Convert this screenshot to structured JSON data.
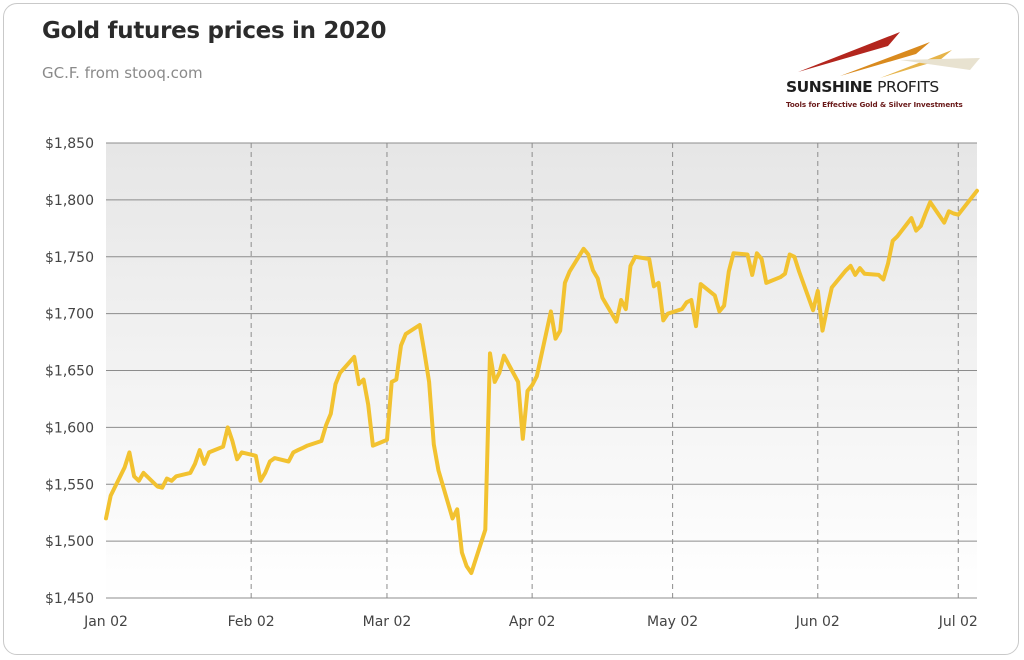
{
  "header": {
    "title": "Gold futures prices in 2020",
    "subtitle": "GC.F. from stooq.com"
  },
  "logo": {
    "brand_bold": "SUNSHINE",
    "brand_light": "PROFITS",
    "tagline": "Tools for Effective Gold & Silver Investments"
  },
  "colors": {
    "line": "#f2c230",
    "grid": "#8c8c8c",
    "plot_bg_top": "#e6e6e6",
    "plot_bg_bottom": "#ffffff"
  },
  "chart_data": {
    "type": "line",
    "title": "Gold futures prices in 2020",
    "subtitle": "GC.F. from stooq.com",
    "xlabel": "",
    "ylabel": "",
    "x_tick_labels": [
      "Jan 02",
      "Feb 02",
      "Mar 02",
      "Apr 02",
      "May 02",
      "Jun 02",
      "Jul 02"
    ],
    "x_tick_dates": [
      "2020-01-02",
      "2020-02-02",
      "2020-03-02",
      "2020-04-02",
      "2020-05-02",
      "2020-06-02",
      "2020-07-02"
    ],
    "y_tick_labels": [
      "$1,450",
      "$1,500",
      "$1,550",
      "$1,600",
      "$1,650",
      "$1,700",
      "$1,750",
      "$1,800",
      "$1,850"
    ],
    "y_tick_values": [
      1450,
      1500,
      1550,
      1600,
      1650,
      1700,
      1750,
      1800,
      1850
    ],
    "xlim": [
      "2020-01-02",
      "2020-07-06"
    ],
    "ylim": [
      1450,
      1850
    ],
    "grid": {
      "x": "dashed",
      "y": "solid"
    },
    "legend": "none",
    "series": [
      {
        "x": [
          "2020-01-02",
          "2020-01-03",
          "2020-01-06",
          "2020-01-07",
          "2020-01-08",
          "2020-01-09",
          "2020-01-10",
          "2020-01-13",
          "2020-01-14",
          "2020-01-15",
          "2020-01-16",
          "2020-01-17",
          "2020-01-20",
          "2020-01-21",
          "2020-01-22",
          "2020-01-23",
          "2020-01-24",
          "2020-01-27",
          "2020-01-28",
          "2020-01-29",
          "2020-01-30",
          "2020-01-31",
          "2020-02-03",
          "2020-02-04",
          "2020-02-05",
          "2020-02-06",
          "2020-02-07",
          "2020-02-10",
          "2020-02-11",
          "2020-02-12",
          "2020-02-13",
          "2020-02-14",
          "2020-02-17",
          "2020-02-18",
          "2020-02-19",
          "2020-02-20",
          "2020-02-21",
          "2020-02-24",
          "2020-02-25",
          "2020-02-26",
          "2020-02-27",
          "2020-02-28",
          "2020-03-02",
          "2020-03-03",
          "2020-03-04",
          "2020-03-05",
          "2020-03-06",
          "2020-03-09",
          "2020-03-10",
          "2020-03-11",
          "2020-03-12",
          "2020-03-13",
          "2020-03-16",
          "2020-03-17",
          "2020-03-18",
          "2020-03-19",
          "2020-03-20",
          "2020-03-23",
          "2020-03-24",
          "2020-03-25",
          "2020-03-26",
          "2020-03-27",
          "2020-03-30",
          "2020-03-31",
          "2020-04-01",
          "2020-04-02",
          "2020-04-03",
          "2020-04-06",
          "2020-04-07",
          "2020-04-08",
          "2020-04-09",
          "2020-04-10",
          "2020-04-13",
          "2020-04-14",
          "2020-04-15",
          "2020-04-16",
          "2020-04-17",
          "2020-04-20",
          "2020-04-21",
          "2020-04-22",
          "2020-04-23",
          "2020-04-24",
          "2020-04-27",
          "2020-04-28",
          "2020-04-29",
          "2020-04-30",
          "2020-05-01",
          "2020-05-04",
          "2020-05-05",
          "2020-05-06",
          "2020-05-07",
          "2020-05-08",
          "2020-05-11",
          "2020-05-12",
          "2020-05-13",
          "2020-05-14",
          "2020-05-15",
          "2020-05-18",
          "2020-05-19",
          "2020-05-20",
          "2020-05-21",
          "2020-05-22",
          "2020-05-25",
          "2020-05-26",
          "2020-05-27",
          "2020-05-28",
          "2020-05-29",
          "2020-06-01",
          "2020-06-02",
          "2020-06-03",
          "2020-06-04",
          "2020-06-05",
          "2020-06-08",
          "2020-06-09",
          "2020-06-10",
          "2020-06-11",
          "2020-06-12",
          "2020-06-15",
          "2020-06-16",
          "2020-06-17",
          "2020-06-18",
          "2020-06-19",
          "2020-06-22",
          "2020-06-23",
          "2020-06-24",
          "2020-06-25",
          "2020-06-26",
          "2020-06-29",
          "2020-06-30",
          "2020-07-01",
          "2020-07-02",
          "2020-07-06"
        ],
        "y": [
          1520,
          1540,
          1565,
          1578,
          1557,
          1553,
          1560,
          1548,
          1547,
          1555,
          1553,
          1557,
          1560,
          1568,
          1580,
          1568,
          1578,
          1583,
          1600,
          1588,
          1572,
          1578,
          1575,
          1553,
          1560,
          1570,
          1573,
          1570,
          1578,
          1580,
          1582,
          1584,
          1588,
          1602,
          1612,
          1638,
          1648,
          1662,
          1638,
          1642,
          1620,
          1584,
          1589,
          1640,
          1642,
          1672,
          1682,
          1690,
          1666,
          1640,
          1585,
          1562,
          1520,
          1528,
          1490,
          1478,
          1472,
          1510,
          1665,
          1640,
          1648,
          1663,
          1640,
          1590,
          1632,
          1637,
          1645,
          1702,
          1678,
          1685,
          1727,
          1737,
          1757,
          1752,
          1738,
          1731,
          1714,
          1693,
          1712,
          1704,
          1742,
          1750,
          1748,
          1724,
          1727,
          1694,
          1700,
          1704,
          1710,
          1712,
          1689,
          1726,
          1716,
          1702,
          1707,
          1737,
          1753,
          1752,
          1734,
          1753,
          1748,
          1727,
          1732,
          1735,
          1752,
          1750,
          1737,
          1703,
          1720,
          1685,
          1705,
          1723,
          1738,
          1742,
          1734,
          1740,
          1735,
          1734,
          1730,
          1744,
          1764,
          1768,
          1784,
          1773,
          1777,
          1788,
          1798,
          1780,
          1790,
          1788,
          1787,
          1808
        ]
      }
    ]
  }
}
